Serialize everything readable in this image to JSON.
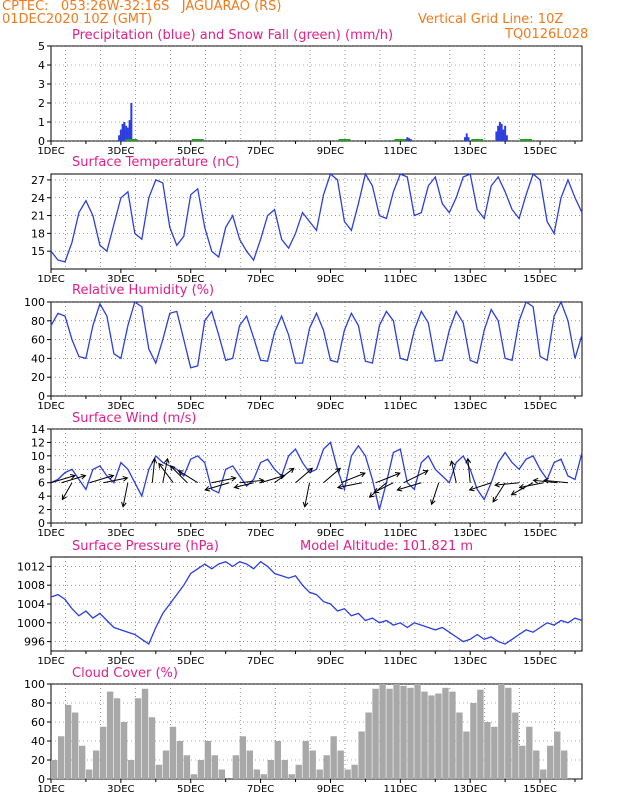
{
  "header": {
    "line1": "CPTEC:   053:26W-32:16S   JAGUARAO (RS)",
    "line2": "01DEC2020 10Z (GMT)",
    "grid_note": "Vertical Grid Line: 10Z",
    "code": "TQ0126L028"
  },
  "colors": {
    "header": "#f07a1e",
    "titles": "#e0208a",
    "series": "#2c3ee0",
    "snow": "#22a022",
    "cloud": "#a8a8a8",
    "wind_arrow": "#000000"
  },
  "x_ticks": [
    "1DEC",
    "3DEC",
    "5DEC",
    "7DEC",
    "9DEC",
    "11DEC",
    "13DEC",
    "15DEC"
  ],
  "model_altitude": "Model Altitude: 101.821 m",
  "chart_data": [
    {
      "type": "bar",
      "title": "Precipitation (blue) and Snow Fall (green) (mm/h)",
      "ylim": [
        0,
        5
      ],
      "y_ticks": [
        "0",
        "1",
        "2",
        "3",
        "4",
        "5"
      ],
      "x_range_days": [
        1,
        16.2
      ],
      "series": [
        {
          "name": "Precipitation",
          "x": [
            2.95,
            3.0,
            3.05,
            3.1,
            3.15,
            3.2,
            3.25,
            3.3,
            11.15,
            11.2,
            11.25,
            11.3,
            12.85,
            12.9,
            12.95,
            13.75,
            13.8,
            13.85,
            13.9,
            13.95,
            14.0,
            14.05
          ],
          "values": [
            0.3,
            0.6,
            0.9,
            1.0,
            0.8,
            0.7,
            1.1,
            2.0,
            0.1,
            0.2,
            0.15,
            0.1,
            0.2,
            0.4,
            0.2,
            0.5,
            0.8,
            1.0,
            0.9,
            0.6,
            0.8,
            0.3
          ]
        },
        {
          "name": "Snow Fall",
          "x": [
            3.3,
            5.2,
            9.4,
            11.0,
            13.2,
            14.6
          ],
          "values": [
            0.02,
            0.02,
            0.02,
            0.02,
            0.02,
            0.02
          ]
        }
      ]
    },
    {
      "type": "line",
      "title": "Surface Temperature (nC)",
      "ylim": [
        12,
        28
      ],
      "y_ticks": [
        "15",
        "18",
        "21",
        "24",
        "27"
      ],
      "y_tick_values": [
        15,
        18,
        21,
        24,
        27
      ],
      "x": [
        1.0,
        1.2,
        1.4,
        1.6,
        1.8,
        2.0,
        2.2,
        2.4,
        2.6,
        2.8,
        3.0,
        3.2,
        3.4,
        3.6,
        3.8,
        4.0,
        4.2,
        4.4,
        4.6,
        4.8,
        5.0,
        5.2,
        5.4,
        5.6,
        5.8,
        6.0,
        6.2,
        6.4,
        6.6,
        6.8,
        7.0,
        7.2,
        7.4,
        7.6,
        7.8,
        8.0,
        8.2,
        8.4,
        8.6,
        8.8,
        9.0,
        9.2,
        9.4,
        9.6,
        9.8,
        10.0,
        10.2,
        10.4,
        10.6,
        10.8,
        11.0,
        11.2,
        11.4,
        11.6,
        11.8,
        12.0,
        12.2,
        12.4,
        12.6,
        12.8,
        13.0,
        13.2,
        13.4,
        13.6,
        13.8,
        14.0,
        14.2,
        14.4,
        14.6,
        14.8,
        15.0,
        15.2,
        15.4,
        15.6,
        15.8,
        16.0,
        16.2
      ],
      "values": [
        15.0,
        13.5,
        13.2,
        16.5,
        21.5,
        23.5,
        21.0,
        16.0,
        15.0,
        19.5,
        24.0,
        25.0,
        18.0,
        17.0,
        24.0,
        27.0,
        26.5,
        19.0,
        16.0,
        17.5,
        24.5,
        25.5,
        19.0,
        15.0,
        14.0,
        19.0,
        21.0,
        17.0,
        15.0,
        13.5,
        17.0,
        21.0,
        22.0,
        17.0,
        15.5,
        18.0,
        21.5,
        20.0,
        18.5,
        24.5,
        28.0,
        27.0,
        20.0,
        18.5,
        23.0,
        28.0,
        26.0,
        21.0,
        20.5,
        25.0,
        28.0,
        27.5,
        21.0,
        21.5,
        26.0,
        27.5,
        23.0,
        21.5,
        24.0,
        27.5,
        28.0,
        22.0,
        20.5,
        26.0,
        27.5,
        25.0,
        22.0,
        20.5,
        24.5,
        28.0,
        27.0,
        20.0,
        18.0,
        24.0,
        27.0,
        24.0,
        21.5
      ]
    },
    {
      "type": "line",
      "title": "Relative Humidity (%)",
      "ylim": [
        0,
        100
      ],
      "y_ticks": [
        "0",
        "20",
        "40",
        "60",
        "80",
        "100"
      ],
      "y_tick_values": [
        0,
        20,
        40,
        60,
        80,
        100
      ],
      "x": [
        1.0,
        1.2,
        1.4,
        1.6,
        1.8,
        2.0,
        2.2,
        2.4,
        2.6,
        2.8,
        3.0,
        3.2,
        3.4,
        3.6,
        3.8,
        4.0,
        4.2,
        4.4,
        4.6,
        4.8,
        5.0,
        5.2,
        5.4,
        5.6,
        5.8,
        6.0,
        6.2,
        6.4,
        6.6,
        6.8,
        7.0,
        7.2,
        7.4,
        7.6,
        7.8,
        8.0,
        8.2,
        8.4,
        8.6,
        8.8,
        9.0,
        9.2,
        9.4,
        9.6,
        9.8,
        10.0,
        10.2,
        10.4,
        10.6,
        10.8,
        11.0,
        11.2,
        11.4,
        11.6,
        11.8,
        12.0,
        12.2,
        12.4,
        12.6,
        12.8,
        13.0,
        13.2,
        13.4,
        13.6,
        13.8,
        14.0,
        14.2,
        14.4,
        14.6,
        14.8,
        15.0,
        15.2,
        15.4,
        15.6,
        15.8,
        16.0,
        16.2
      ],
      "values": [
        75,
        88,
        85,
        60,
        42,
        40,
        75,
        98,
        85,
        45,
        40,
        75,
        100,
        95,
        50,
        35,
        60,
        88,
        90,
        60,
        30,
        32,
        80,
        90,
        65,
        38,
        40,
        75,
        85,
        62,
        38,
        37,
        68,
        85,
        65,
        35,
        35,
        72,
        88,
        70,
        38,
        36,
        70,
        88,
        75,
        37,
        35,
        75,
        90,
        80,
        40,
        38,
        70,
        90,
        78,
        37,
        38,
        70,
        90,
        78,
        38,
        35,
        70,
        92,
        80,
        40,
        38,
        80,
        100,
        95,
        42,
        38,
        85,
        100,
        80,
        40,
        65
      ]
    },
    {
      "type": "line",
      "title": "Surface Wind (m/s)",
      "ylim": [
        0,
        14
      ],
      "y_ticks": [
        "0",
        "2",
        "4",
        "6",
        "8",
        "10",
        "12",
        "14"
      ],
      "y_tick_values": [
        0,
        2,
        4,
        6,
        8,
        10,
        12,
        14
      ],
      "x": [
        1.0,
        1.2,
        1.4,
        1.6,
        1.8,
        2.0,
        2.2,
        2.4,
        2.6,
        2.8,
        3.0,
        3.2,
        3.4,
        3.6,
        3.8,
        4.0,
        4.2,
        4.4,
        4.6,
        4.8,
        5.0,
        5.2,
        5.4,
        5.6,
        5.8,
        6.0,
        6.2,
        6.4,
        6.6,
        6.8,
        7.0,
        7.2,
        7.4,
        7.6,
        7.8,
        8.0,
        8.2,
        8.4,
        8.6,
        8.8,
        9.0,
        9.2,
        9.4,
        9.6,
        9.8,
        10.0,
        10.2,
        10.4,
        10.6,
        10.8,
        11.0,
        11.2,
        11.4,
        11.6,
        11.8,
        12.0,
        12.2,
        12.4,
        12.6,
        12.8,
        13.0,
        13.2,
        13.4,
        13.6,
        13.8,
        14.0,
        14.2,
        14.4,
        14.6,
        14.8,
        15.0,
        15.2,
        15.4,
        15.6,
        15.8,
        16.0,
        16.2
      ],
      "values": [
        6.0,
        6.5,
        7.5,
        8.0,
        6.5,
        5.0,
        8.0,
        8.5,
        7.0,
        6.0,
        9.0,
        8.0,
        6.0,
        4.0,
        8.0,
        10.0,
        9.0,
        8.5,
        8.0,
        7.0,
        9.5,
        10.0,
        9.0,
        5.0,
        4.5,
        8.0,
        8.5,
        7.0,
        5.5,
        6.5,
        9.0,
        9.5,
        8.0,
        7.0,
        10.0,
        11.0,
        9.0,
        7.5,
        8.0,
        11.0,
        12.0,
        8.0,
        5.0,
        10.0,
        11.5,
        10.0,
        6.5,
        2.0,
        6.0,
        10.5,
        11.0,
        6.0,
        5.0,
        9.0,
        10.0,
        8.0,
        7.0,
        6.0,
        9.0,
        10.0,
        8.0,
        5.0,
        3.5,
        6.0,
        9.0,
        10.5,
        9.0,
        8.0,
        9.5,
        10.0,
        8.0,
        6.5,
        9.0,
        9.5,
        7.0,
        6.5,
        10.5
      ]
    },
    {
      "type": "line",
      "title": "Surface Pressure (hPa)",
      "ylim": [
        994,
        1014
      ],
      "y_ticks": [
        "996",
        "1000",
        "1004",
        "1008",
        "1012"
      ],
      "y_tick_values": [
        996,
        1000,
        1004,
        1008,
        1012
      ],
      "x": [
        1.0,
        1.2,
        1.4,
        1.6,
        1.8,
        2.0,
        2.2,
        2.4,
        2.6,
        2.8,
        3.0,
        3.2,
        3.4,
        3.6,
        3.8,
        4.0,
        4.2,
        4.4,
        4.6,
        4.8,
        5.0,
        5.2,
        5.4,
        5.6,
        5.8,
        6.0,
        6.2,
        6.4,
        6.6,
        6.8,
        7.0,
        7.2,
        7.4,
        7.6,
        7.8,
        8.0,
        8.2,
        8.4,
        8.6,
        8.8,
        9.0,
        9.2,
        9.4,
        9.6,
        9.8,
        10.0,
        10.2,
        10.4,
        10.6,
        10.8,
        11.0,
        11.2,
        11.4,
        11.6,
        11.8,
        12.0,
        12.2,
        12.4,
        12.6,
        12.8,
        13.0,
        13.2,
        13.4,
        13.6,
        13.8,
        14.0,
        14.2,
        14.4,
        14.6,
        14.8,
        15.0,
        15.2,
        15.4,
        15.6,
        15.8,
        16.0,
        16.2
      ],
      "values": [
        1005.5,
        1006.0,
        1005.0,
        1003.0,
        1001.5,
        1002.5,
        1001.0,
        1002.0,
        1000.5,
        999.0,
        998.5,
        998.0,
        997.5,
        996.5,
        995.5,
        999.0,
        1002.0,
        1004.0,
        1006.0,
        1008.0,
        1010.5,
        1011.5,
        1012.5,
        1011.5,
        1012.5,
        1013.0,
        1012.0,
        1013.0,
        1012.5,
        1011.5,
        1013.0,
        1012.0,
        1010.5,
        1010.0,
        1009.5,
        1010.0,
        1008.0,
        1006.5,
        1006.0,
        1004.5,
        1004.0,
        1002.5,
        1003.0,
        1001.5,
        1002.0,
        1000.5,
        1001.0,
        1000.0,
        1000.5,
        999.5,
        1000.0,
        999.0,
        1000.0,
        999.5,
        999.0,
        998.5,
        999.0,
        998.0,
        997.0,
        996.0,
        996.5,
        997.5,
        996.5,
        997.0,
        996.0,
        995.5,
        996.5,
        997.5,
        998.5,
        998.0,
        999.0,
        1000.0,
        999.5,
        1000.5,
        1000.0,
        1001.0,
        1000.5
      ]
    },
    {
      "type": "area",
      "title": "Cloud Cover (%)",
      "ylim": [
        0,
        100
      ],
      "y_ticks": [
        "0",
        "20",
        "40",
        "60",
        "80",
        "100"
      ],
      "y_tick_values": [
        0,
        20,
        40,
        60,
        80,
        100
      ],
      "x": [
        1.0,
        1.2,
        1.4,
        1.6,
        1.8,
        2.0,
        2.2,
        2.4,
        2.6,
        2.8,
        3.0,
        3.2,
        3.4,
        3.6,
        3.8,
        4.0,
        4.2,
        4.4,
        4.6,
        4.8,
        5.0,
        5.2,
        5.4,
        5.6,
        5.8,
        6.0,
        6.2,
        6.4,
        6.6,
        6.8,
        7.0,
        7.2,
        7.4,
        7.6,
        7.8,
        8.0,
        8.2,
        8.4,
        8.6,
        8.8,
        9.0,
        9.2,
        9.4,
        9.6,
        9.8,
        10.0,
        10.2,
        10.4,
        10.6,
        10.8,
        11.0,
        11.2,
        11.4,
        11.6,
        11.8,
        12.0,
        12.2,
        12.4,
        12.6,
        12.8,
        13.0,
        13.2,
        13.4,
        13.6,
        13.8,
        14.0,
        14.2,
        14.4,
        14.6,
        14.8,
        15.0,
        15.2,
        15.4,
        15.6,
        15.8,
        16.0,
        16.2
      ],
      "values": [
        20,
        45,
        78,
        70,
        35,
        10,
        30,
        55,
        92,
        85,
        60,
        20,
        85,
        95,
        65,
        15,
        30,
        55,
        40,
        25,
        5,
        20,
        40,
        25,
        10,
        0,
        25,
        45,
        30,
        10,
        5,
        20,
        40,
        20,
        5,
        15,
        40,
        30,
        10,
        25,
        45,
        30,
        10,
        15,
        50,
        70,
        95,
        100,
        95,
        100,
        98,
        96,
        100,
        92,
        88,
        90,
        96,
        92,
        70,
        50,
        80,
        94,
        60,
        55,
        100,
        96,
        70,
        35,
        55,
        30,
        10,
        35,
        50,
        30,
        0,
        0,
        0
      ]
    }
  ],
  "wind_arrows": [
    {
      "x": 1.0,
      "u": 1,
      "v": 0.3
    },
    {
      "x": 1.3,
      "u": 1,
      "v": 0.3
    },
    {
      "x": 1.6,
      "u": -0.4,
      "v": -0.7
    },
    {
      "x": 2.1,
      "u": 1,
      "v": 0.3
    },
    {
      "x": 2.5,
      "u": 1,
      "v": 0.2
    },
    {
      "x": 3.2,
      "u": -0.2,
      "v": -1
    },
    {
      "x": 3.9,
      "u": 0.1,
      "v": 1
    },
    {
      "x": 4.2,
      "u": 0.2,
      "v": 1
    },
    {
      "x": 4.5,
      "u": -0.6,
      "v": 0.8
    },
    {
      "x": 4.9,
      "u": -0.7,
      "v": 0.7
    },
    {
      "x": 5.2,
      "u": -0.8,
      "v": 0.5
    },
    {
      "x": 5.6,
      "u": 1,
      "v": 0.2
    },
    {
      "x": 6.1,
      "u": -1,
      "v": -0.3
    },
    {
      "x": 6.4,
      "u": 1,
      "v": 0.1
    },
    {
      "x": 6.8,
      "u": -0.8,
      "v": -0.2
    },
    {
      "x": 7.0,
      "u": 1,
      "v": 0.3
    },
    {
      "x": 7.4,
      "u": 0.8,
      "v": 0.6
    },
    {
      "x": 8.0,
      "u": 0.7,
      "v": 0.6
    },
    {
      "x": 8.4,
      "u": -0.2,
      "v": -1
    },
    {
      "x": 8.8,
      "u": 0.7,
      "v": 0.6
    },
    {
      "x": 9.3,
      "u": 1,
      "v": 0.4
    },
    {
      "x": 9.9,
      "u": -1,
      "v": -0.2
    },
    {
      "x": 10.3,
      "u": 1,
      "v": 0.4
    },
    {
      "x": 10.6,
      "u": -0.7,
      "v": -0.6
    },
    {
      "x": 10.8,
      "u": -0.8,
      "v": -0.4
    },
    {
      "x": 11.1,
      "u": 1,
      "v": 0.5
    },
    {
      "x": 11.6,
      "u": -1,
      "v": -0.3
    },
    {
      "x": 12.1,
      "u": -0.3,
      "v": -0.9
    },
    {
      "x": 12.6,
      "u": -0.2,
      "v": 0.9
    },
    {
      "x": 13.0,
      "u": -0.1,
      "v": 1
    },
    {
      "x": 13.6,
      "u": -0.9,
      "v": -0.3
    },
    {
      "x": 14.0,
      "u": -0.5,
      "v": -0.8
    },
    {
      "x": 14.4,
      "u": -1,
      "v": -0.1
    },
    {
      "x": 14.8,
      "u": -0.9,
      "v": -0.5
    },
    {
      "x": 15.1,
      "u": -1,
      "v": -0.2
    },
    {
      "x": 15.5,
      "u": -1,
      "v": 0.1
    },
    {
      "x": 15.8,
      "u": -1,
      "v": 0.1
    }
  ]
}
